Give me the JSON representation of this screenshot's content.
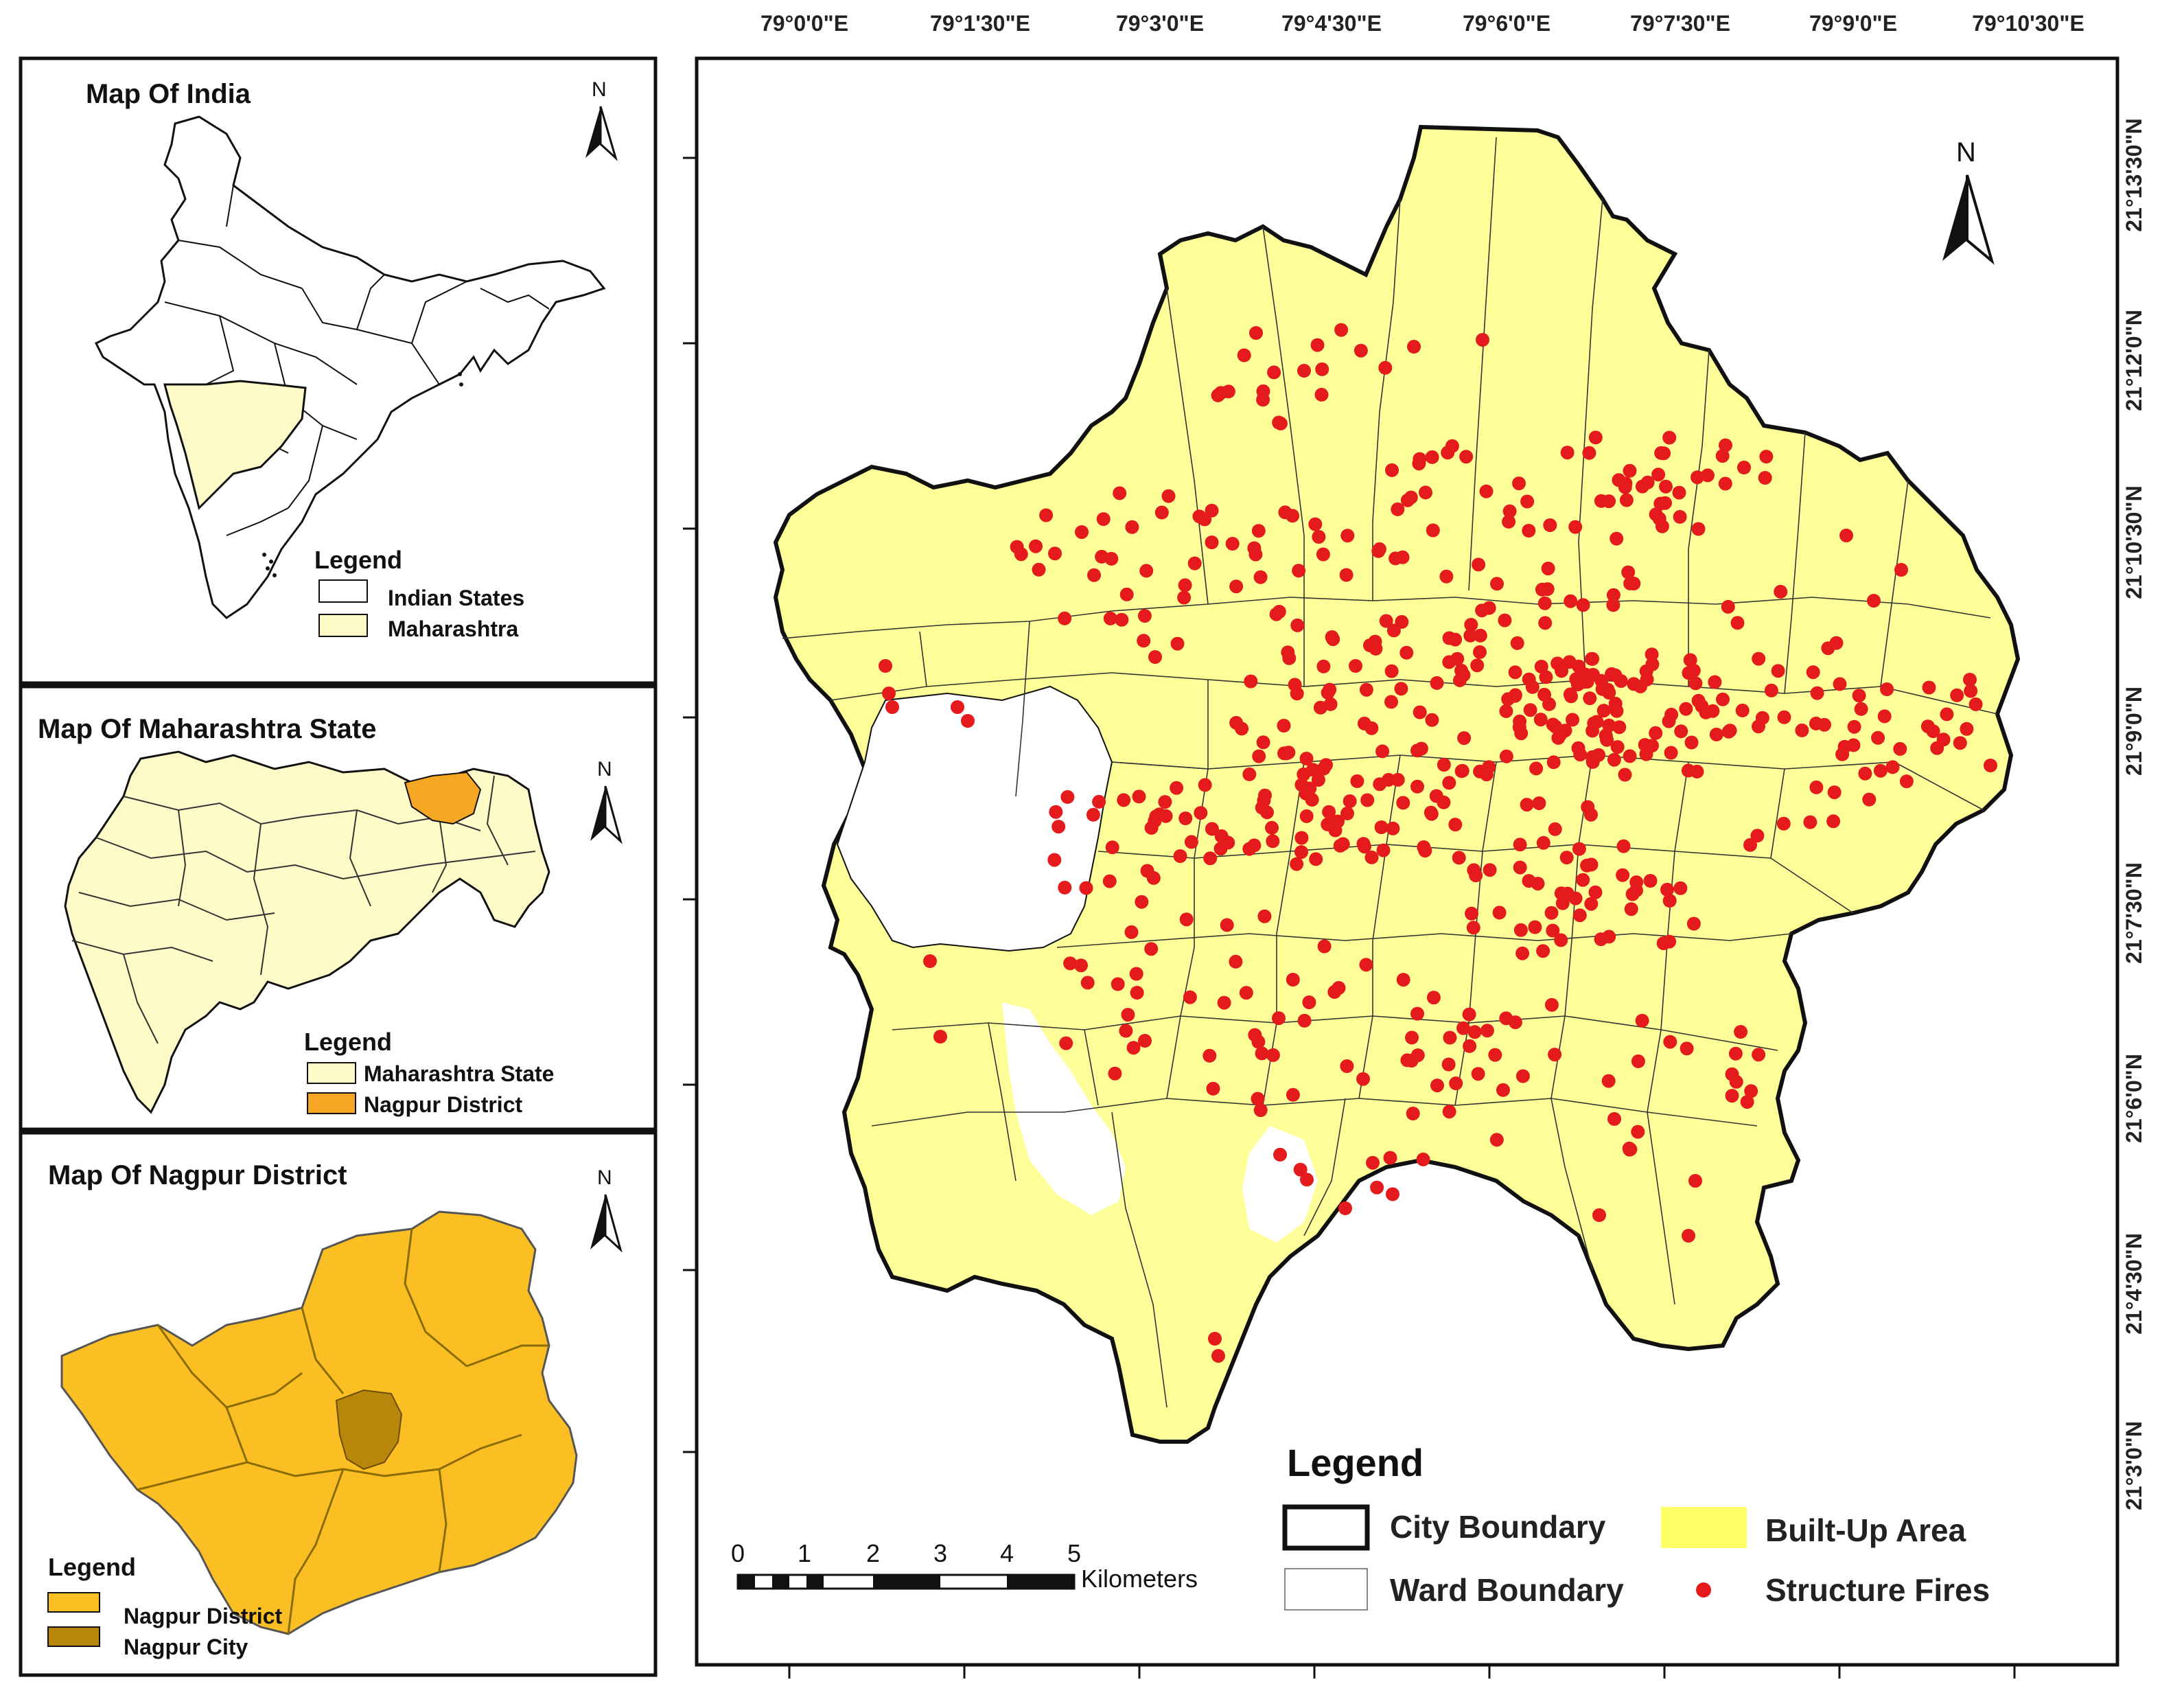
{
  "insets": {
    "india": {
      "title": "Map Of India",
      "legend_title": "Legend",
      "legend_items": [
        "Indian States",
        "Maharashtra"
      ]
    },
    "maharashtra": {
      "title": "Map Of Maharashtra State",
      "legend_title": "Legend",
      "legend_items": [
        "Maharashtra State",
        "Nagpur District"
      ]
    },
    "nagpur": {
      "title": "Map Of Nagpur District",
      "legend_title": "Legend",
      "legend_items": [
        "Nagpur District",
        "Nagpur City"
      ]
    },
    "north_label": "N"
  },
  "main_map": {
    "north_label": "N",
    "top_labels": [
      "79°0'0\"E",
      "79°1'30\"E",
      "79°3'0\"E",
      "79°4'30\"E",
      "79°6'0\"E",
      "79°7'30\"E",
      "79°9'0\"E",
      "79°10'30\"E"
    ],
    "right_labels": [
      "21°13'30\"N",
      "21°12'0\"N",
      "21°10'30\"N",
      "21°9'0\"N",
      "21°7'30\"N",
      "21°6'0\"N",
      "21°4'30\"N",
      "21°3'0\"N"
    ],
    "scale": {
      "ticks": [
        "0",
        "1",
        "2",
        "3",
        "4",
        "5"
      ],
      "unit": "Kilometers"
    },
    "legend": {
      "title": "Legend",
      "items": [
        "City Boundary",
        "Built-Up Area",
        "Ward Boundary",
        "Structure Fires"
      ]
    }
  },
  "colors": {
    "built_up": "#ffff99",
    "fire": "#e41a1c",
    "maharashtra": "#fffbc8",
    "nagpur_district": "#fbbf24",
    "nagpur_city": "#b8860b",
    "highlight_district": "#f5a623"
  }
}
